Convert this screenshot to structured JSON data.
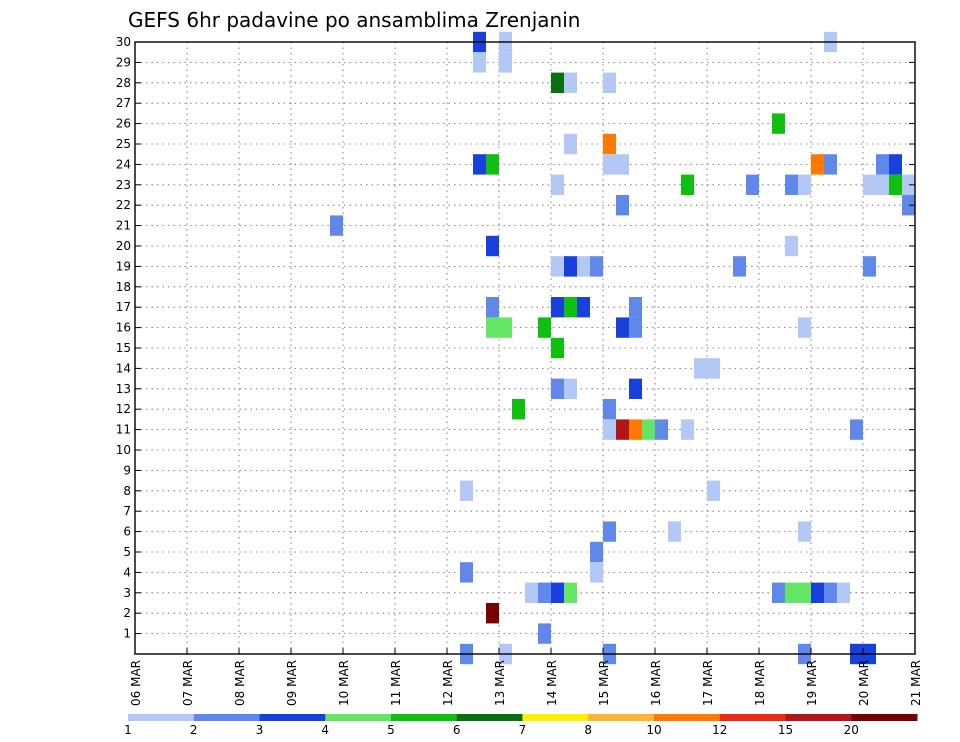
{
  "chart_data": {
    "type": "heatmap",
    "title": "GEFS 6hr padavine po ansamblima Zrenjanin",
    "xlabel": "",
    "ylabel": "",
    "x_ticks": [
      "06 MAR",
      "07 MAR",
      "08 MAR",
      "09 MAR",
      "10 MAR",
      "11 MAR",
      "12 MAR",
      "13 MAR",
      "14 MAR",
      "15 MAR",
      "16 MAR",
      "17 MAR",
      "18 MAR",
      "19 MAR",
      "20 MAR",
      "21 MAR"
    ],
    "x_range_days": [
      0,
      15
    ],
    "y_range": [
      0,
      30
    ],
    "y_ticks": [
      1,
      2,
      3,
      4,
      5,
      6,
      7,
      8,
      9,
      10,
      11,
      12,
      13,
      14,
      15,
      16,
      17,
      18,
      19,
      20,
      21,
      22,
      23,
      24,
      25,
      26,
      27,
      28,
      29,
      30
    ],
    "grid": "dotted",
    "legend_placement": "bottom",
    "legend": {
      "labels": [
        "1",
        "2",
        "3",
        "4",
        "5",
        "6",
        "7",
        "8",
        "10",
        "12",
        "15",
        "20"
      ],
      "colors": [
        "#b4c8f5",
        "#6088ea",
        "#1840dc",
        "#64e664",
        "#10c010",
        "#087010",
        "#fff000",
        "#ffb430",
        "#ff7800",
        "#e82c14",
        "#b41414",
        "#780000"
      ]
    },
    "cells": [
      {
        "day": 6.25,
        "member": 0,
        "level": 2
      },
      {
        "day": 6.5,
        "member": 30,
        "level": 3
      },
      {
        "day": 7.0,
        "member": 0,
        "level": 1
      },
      {
        "day": 9.0,
        "member": 0,
        "level": 2
      },
      {
        "day": 12.75,
        "member": 0,
        "level": 2
      },
      {
        "day": 13.75,
        "member": 0,
        "level": 3
      },
      {
        "day": 14.0,
        "member": 0,
        "level": 3
      },
      {
        "day": 13.25,
        "member": 30,
        "level": 1
      },
      {
        "day": 6.5,
        "member": 29,
        "level": 1
      },
      {
        "day": 7.0,
        "member": 29,
        "level": 1
      },
      {
        "day": 7.0,
        "member": 30,
        "level": 1
      },
      {
        "day": 8.0,
        "member": 28,
        "level": 6
      },
      {
        "day": 8.25,
        "member": 28,
        "level": 1
      },
      {
        "day": 9.0,
        "member": 28,
        "level": 1
      },
      {
        "day": 12.25,
        "member": 26,
        "level": 5
      },
      {
        "day": 8.25,
        "member": 25,
        "level": 1
      },
      {
        "day": 9.0,
        "member": 25,
        "level": 9
      },
      {
        "day": 6.5,
        "member": 24,
        "level": 3
      },
      {
        "day": 6.75,
        "member": 24,
        "level": 5
      },
      {
        "day": 9.0,
        "member": 24,
        "level": 1
      },
      {
        "day": 9.25,
        "member": 24,
        "level": 1
      },
      {
        "day": 13.0,
        "member": 24,
        "level": 9
      },
      {
        "day": 13.25,
        "member": 24,
        "level": 2
      },
      {
        "day": 14.25,
        "member": 24,
        "level": 2
      },
      {
        "day": 14.5,
        "member": 24,
        "level": 3
      },
      {
        "day": 8.0,
        "member": 23,
        "level": 1
      },
      {
        "day": 10.5,
        "member": 23,
        "level": 5
      },
      {
        "day": 11.75,
        "member": 23,
        "level": 2
      },
      {
        "day": 12.5,
        "member": 23,
        "level": 2
      },
      {
        "day": 12.75,
        "member": 23,
        "level": 1
      },
      {
        "day": 14.0,
        "member": 23,
        "level": 1
      },
      {
        "day": 14.25,
        "member": 23,
        "level": 1
      },
      {
        "day": 14.5,
        "member": 23,
        "level": 5
      },
      {
        "day": 14.75,
        "member": 23,
        "level": 1
      },
      {
        "day": 9.25,
        "member": 22,
        "level": 2
      },
      {
        "day": 14.75,
        "member": 22,
        "level": 2
      },
      {
        "day": 3.75,
        "member": 21,
        "level": 2
      },
      {
        "day": 6.75,
        "member": 20,
        "level": 3
      },
      {
        "day": 12.5,
        "member": 20,
        "level": 1
      },
      {
        "day": 8.0,
        "member": 19,
        "level": 1
      },
      {
        "day": 8.25,
        "member": 19,
        "level": 3
      },
      {
        "day": 8.5,
        "member": 19,
        "level": 1
      },
      {
        "day": 8.75,
        "member": 19,
        "level": 2
      },
      {
        "day": 11.5,
        "member": 19,
        "level": 2
      },
      {
        "day": 14.0,
        "member": 19,
        "level": 2
      },
      {
        "day": 6.75,
        "member": 17,
        "level": 2
      },
      {
        "day": 8.0,
        "member": 17,
        "level": 3
      },
      {
        "day": 8.25,
        "member": 17,
        "level": 5
      },
      {
        "day": 8.5,
        "member": 17,
        "level": 3
      },
      {
        "day": 9.5,
        "member": 17,
        "level": 2
      },
      {
        "day": 6.75,
        "member": 16,
        "level": 4
      },
      {
        "day": 7.0,
        "member": 16,
        "level": 4
      },
      {
        "day": 7.75,
        "member": 16,
        "level": 5
      },
      {
        "day": 9.25,
        "member": 16,
        "level": 3
      },
      {
        "day": 9.5,
        "member": 16,
        "level": 2
      },
      {
        "day": 12.75,
        "member": 16,
        "level": 1
      },
      {
        "day": 8.0,
        "member": 15,
        "level": 5
      },
      {
        "day": 10.75,
        "member": 14,
        "level": 1
      },
      {
        "day": 11.0,
        "member": 14,
        "level": 1
      },
      {
        "day": 8.0,
        "member": 13,
        "level": 2
      },
      {
        "day": 8.25,
        "member": 13,
        "level": 1
      },
      {
        "day": 9.5,
        "member": 13,
        "level": 3
      },
      {
        "day": 7.25,
        "member": 12,
        "level": 5
      },
      {
        "day": 9.0,
        "member": 12,
        "level": 2
      },
      {
        "day": 9.0,
        "member": 11,
        "level": 1
      },
      {
        "day": 9.25,
        "member": 11,
        "level": 11
      },
      {
        "day": 9.5,
        "member": 11,
        "level": 9
      },
      {
        "day": 9.75,
        "member": 11,
        "level": 4
      },
      {
        "day": 10.0,
        "member": 11,
        "level": 2
      },
      {
        "day": 10.5,
        "member": 11,
        "level": 1
      },
      {
        "day": 13.75,
        "member": 11,
        "level": 2
      },
      {
        "day": 6.25,
        "member": 8,
        "level": 1
      },
      {
        "day": 11.0,
        "member": 8,
        "level": 1
      },
      {
        "day": 9.0,
        "member": 6,
        "level": 2
      },
      {
        "day": 10.25,
        "member": 6,
        "level": 1
      },
      {
        "day": 12.75,
        "member": 6,
        "level": 1
      },
      {
        "day": 8.75,
        "member": 5,
        "level": 2
      },
      {
        "day": 6.25,
        "member": 4,
        "level": 2
      },
      {
        "day": 8.75,
        "member": 4,
        "level": 1
      },
      {
        "day": 7.5,
        "member": 3,
        "level": 1
      },
      {
        "day": 7.75,
        "member": 3,
        "level": 2
      },
      {
        "day": 8.0,
        "member": 3,
        "level": 3
      },
      {
        "day": 8.25,
        "member": 3,
        "level": 4
      },
      {
        "day": 12.25,
        "member": 3,
        "level": 2
      },
      {
        "day": 12.5,
        "member": 3,
        "level": 4
      },
      {
        "day": 12.75,
        "member": 3,
        "level": 4
      },
      {
        "day": 13.0,
        "member": 3,
        "level": 3
      },
      {
        "day": 13.25,
        "member": 3,
        "level": 2
      },
      {
        "day": 13.5,
        "member": 3,
        "level": 1
      },
      {
        "day": 6.75,
        "member": 2,
        "level": 12
      },
      {
        "day": 7.75,
        "member": 1,
        "level": 2
      }
    ]
  }
}
